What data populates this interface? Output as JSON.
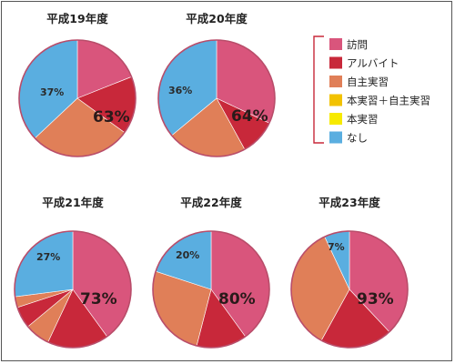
{
  "colors": {
    "visit": "#d9557c",
    "part_time": "#c8283a",
    "self_practice": "#e07f58",
    "main_plus_self": "#f2c200",
    "main_practice": "#f7ea00",
    "none": "#5aaee0"
  },
  "chart_data": {
    "type": "pie",
    "legend": [
      {
        "key": "visit",
        "label": "訪問"
      },
      {
        "key": "part_time",
        "label": "アルバイト"
      },
      {
        "key": "self_practice",
        "label": "自主実習"
      },
      {
        "key": "main_plus_self",
        "label": "本実習＋自主実習"
      },
      {
        "key": "main_practice",
        "label": "本実習"
      },
      {
        "key": "none",
        "label": "なし"
      }
    ],
    "legend_position": "top-right",
    "charts": [
      {
        "title": "平成19年度",
        "big_label": "63%",
        "small_label": "37%",
        "slices": [
          {
            "key": "visit",
            "value": 19
          },
          {
            "key": "part_time",
            "value": 16
          },
          {
            "key": "self_practice",
            "value": 28
          },
          {
            "key": "none",
            "value": 37
          }
        ]
      },
      {
        "title": "平成20年度",
        "big_label": "64%",
        "small_label": "36%",
        "slices": [
          {
            "key": "visit",
            "value": 32
          },
          {
            "key": "part_time",
            "value": 10
          },
          {
            "key": "self_practice",
            "value": 22
          },
          {
            "key": "none",
            "value": 36
          }
        ]
      },
      {
        "title": "平成21年度",
        "big_label": "73%",
        "small_label": "27%",
        "slices": [
          {
            "key": "visit",
            "value": 40
          },
          {
            "key": "part_time",
            "value": 17
          },
          {
            "key": "self_practice",
            "value": 7
          },
          {
            "key": "part_time",
            "value": 6
          },
          {
            "key": "self_practice",
            "value": 3
          },
          {
            "key": "none",
            "value": 27
          }
        ]
      },
      {
        "title": "平成22年度",
        "big_label": "80%",
        "small_label": "20%",
        "slices": [
          {
            "key": "visit",
            "value": 40
          },
          {
            "key": "part_time",
            "value": 14
          },
          {
            "key": "self_practice",
            "value": 26
          },
          {
            "key": "none",
            "value": 20
          }
        ]
      },
      {
        "title": "平成23年度",
        "big_label": "93%",
        "small_label": "7%",
        "slices": [
          {
            "key": "visit",
            "value": 38
          },
          {
            "key": "part_time",
            "value": 20
          },
          {
            "key": "self_practice",
            "value": 35
          },
          {
            "key": "none",
            "value": 7
          }
        ]
      }
    ]
  }
}
